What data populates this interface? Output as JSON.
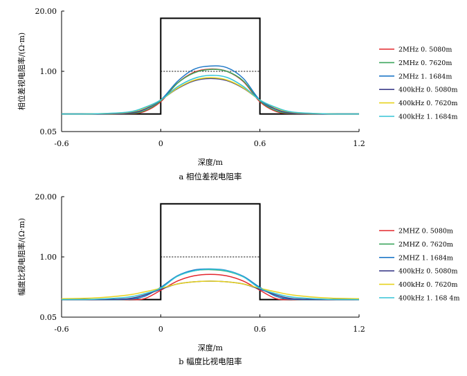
{
  "chart_data": [
    {
      "type": "line",
      "title": "",
      "caption": "a 相位差视电阻率",
      "xlabel": "深度/m",
      "ylabel": "相位差视电阻率/(Ω·m)",
      "x_scale": "linear",
      "y_scale": "log",
      "xlim": [
        -0.6,
        1.2
      ],
      "ylim": [
        0.05,
        20.0
      ],
      "xticks": [
        -0.6,
        0,
        0.6,
        1.2
      ],
      "xtick_labels": [
        "-0.6",
        "0",
        "0.6",
        "1.2"
      ],
      "yticks": [
        0.05,
        1.0,
        20.0
      ],
      "ytick_labels": [
        "0.05",
        "1.00",
        "20.00"
      ],
      "legend_position": "right",
      "true_model": {
        "name": "true resistivity",
        "x": [
          -0.6,
          0,
          0,
          0.6,
          0.6,
          1.2
        ],
        "y": [
          0.12,
          0.12,
          14.0,
          14.0,
          0.12,
          0.12
        ]
      },
      "reference_line": {
        "name": "reference 1.00 Ω·m",
        "x": [
          0,
          0.6
        ],
        "y": [
          1.0,
          1.0
        ]
      },
      "series": [
        {
          "name": "2MHz 0. 5080m",
          "color": "#e3262c",
          "x": [
            -0.6,
            -0.4,
            -0.2,
            -0.1,
            0,
            0.1,
            0.2,
            0.3,
            0.4,
            0.5,
            0.6,
            0.7,
            0.8,
            1.0,
            1.2
          ],
          "y": [
            0.12,
            0.12,
            0.122,
            0.135,
            0.22,
            0.55,
            0.95,
            1.12,
            1.0,
            0.6,
            0.22,
            0.135,
            0.122,
            0.12,
            0.12
          ]
        },
        {
          "name": "2MHz 0. 7620m",
          "color": "#3ba55c",
          "x": [
            -0.6,
            -0.4,
            -0.2,
            -0.1,
            0,
            0.1,
            0.2,
            0.3,
            0.4,
            0.5,
            0.6,
            0.7,
            0.8,
            1.0,
            1.2
          ],
          "y": [
            0.12,
            0.12,
            0.123,
            0.14,
            0.23,
            0.55,
            0.92,
            1.1,
            1.0,
            0.62,
            0.23,
            0.14,
            0.123,
            0.12,
            0.12
          ]
        },
        {
          "name": "2MHz 1. 1684m",
          "color": "#1f78c8",
          "x": [
            -0.6,
            -0.4,
            -0.2,
            -0.1,
            0,
            0.1,
            0.2,
            0.3,
            0.4,
            0.5,
            0.6,
            0.7,
            0.8,
            1.0,
            1.2
          ],
          "y": [
            0.12,
            0.12,
            0.125,
            0.15,
            0.24,
            0.6,
            1.1,
            1.3,
            1.2,
            0.7,
            0.24,
            0.15,
            0.125,
            0.12,
            0.12
          ]
        },
        {
          "name": "400kHz 0. 5080m",
          "color": "#3d3d8a",
          "x": [
            -0.6,
            -0.4,
            -0.2,
            -0.1,
            0,
            0.1,
            0.2,
            0.3,
            0.4,
            0.5,
            0.6,
            0.7,
            0.8,
            1.0,
            1.2
          ],
          "y": [
            0.12,
            0.12,
            0.125,
            0.15,
            0.24,
            0.42,
            0.62,
            0.7,
            0.63,
            0.43,
            0.24,
            0.15,
            0.125,
            0.12,
            0.12
          ]
        },
        {
          "name": "400kHz 0. 7620m",
          "color": "#e6d21c",
          "x": [
            -0.6,
            -0.4,
            -0.2,
            -0.1,
            0,
            0.1,
            0.2,
            0.3,
            0.4,
            0.5,
            0.6,
            0.7,
            0.8,
            1.0,
            1.2
          ],
          "y": [
            0.12,
            0.121,
            0.13,
            0.16,
            0.24,
            0.43,
            0.64,
            0.73,
            0.65,
            0.44,
            0.24,
            0.16,
            0.13,
            0.121,
            0.12
          ]
        },
        {
          "name": "400kHz 1. 1684m",
          "color": "#33c4d6",
          "x": [
            -0.6,
            -0.4,
            -0.2,
            -0.1,
            0,
            0.1,
            0.2,
            0.3,
            0.4,
            0.5,
            0.6,
            0.7,
            0.8,
            1.0,
            1.2
          ],
          "y": [
            0.12,
            0.121,
            0.132,
            0.165,
            0.24,
            0.46,
            0.7,
            0.82,
            0.74,
            0.47,
            0.24,
            0.165,
            0.132,
            0.121,
            0.12
          ]
        }
      ]
    },
    {
      "type": "line",
      "title": "",
      "caption": "b 幅度比视电阻率",
      "xlabel": "深度/m",
      "ylabel": "幅度比视电阻率/(Ω·m)",
      "x_scale": "linear",
      "y_scale": "log",
      "xlim": [
        -0.6,
        1.2
      ],
      "ylim": [
        0.05,
        20.0
      ],
      "xticks": [
        -0.6,
        0,
        0.6,
        1.2
      ],
      "xtick_labels": [
        "-0.6",
        "0",
        "0.6",
        "1.2"
      ],
      "yticks": [
        0.05,
        1.0,
        20.0
      ],
      "ytick_labels": [
        "0.05",
        "1.00",
        "20.00"
      ],
      "legend_position": "right",
      "true_model": {
        "name": "true resistivity",
        "x": [
          -0.6,
          0,
          0,
          0.6,
          0.6,
          1.2
        ],
        "y": [
          0.12,
          0.12,
          14.0,
          14.0,
          0.12,
          0.12
        ]
      },
      "reference_line": {
        "name": "reference 1.00 Ω·m",
        "x": [
          0,
          0.6
        ],
        "y": [
          1.0,
          1.0
        ]
      },
      "series": [
        {
          "name": "2MHZ 0. 5080m",
          "color": "#e3262c",
          "x": [
            -0.6,
            -0.4,
            -0.2,
            -0.1,
            0,
            0.1,
            0.2,
            0.3,
            0.4,
            0.5,
            0.6,
            0.7,
            0.8,
            1.0,
            1.2
          ],
          "y": [
            0.12,
            0.12,
            0.12,
            0.125,
            0.19,
            0.3,
            0.39,
            0.42,
            0.39,
            0.3,
            0.19,
            0.125,
            0.12,
            0.12,
            0.12
          ]
        },
        {
          "name": "2MHZ 0. 7620m",
          "color": "#3ba55c",
          "x": [
            -0.6,
            -0.4,
            -0.2,
            -0.1,
            0,
            0.1,
            0.2,
            0.3,
            0.4,
            0.5,
            0.6,
            0.7,
            0.8,
            1.0,
            1.2
          ],
          "y": [
            0.12,
            0.12,
            0.122,
            0.14,
            0.22,
            0.38,
            0.5,
            0.53,
            0.49,
            0.37,
            0.22,
            0.14,
            0.122,
            0.12,
            0.12
          ]
        },
        {
          "name": "2MHZ 1. 1684m",
          "color": "#1f78c8",
          "x": [
            -0.6,
            -0.4,
            -0.2,
            -0.1,
            0,
            0.1,
            0.2,
            0.3,
            0.4,
            0.5,
            0.6,
            0.7,
            0.8,
            1.0,
            1.2
          ],
          "y": [
            0.12,
            0.12,
            0.122,
            0.14,
            0.22,
            0.39,
            0.52,
            0.55,
            0.51,
            0.38,
            0.22,
            0.14,
            0.122,
            0.12,
            0.12
          ]
        },
        {
          "name": "400kHz 0. 5080m",
          "color": "#3d3d8a",
          "x": [
            -0.6,
            -0.4,
            -0.2,
            -0.1,
            0,
            0.1,
            0.2,
            0.3,
            0.4,
            0.5,
            0.6,
            0.7,
            0.8,
            1.0,
            1.2
          ],
          "y": [
            0.12,
            0.12,
            0.125,
            0.15,
            0.2,
            0.26,
            0.29,
            0.3,
            0.29,
            0.26,
            0.2,
            0.15,
            0.125,
            0.12,
            0.12
          ]
        },
        {
          "name": "400kHz 0. 7620m",
          "color": "#e6d21c",
          "x": [
            -0.6,
            -0.4,
            -0.2,
            -0.1,
            0,
            0.1,
            0.2,
            0.3,
            0.4,
            0.5,
            0.6,
            0.7,
            0.8,
            1.0,
            1.2
          ],
          "y": [
            0.125,
            0.13,
            0.15,
            0.175,
            0.21,
            0.26,
            0.29,
            0.3,
            0.29,
            0.26,
            0.21,
            0.175,
            0.15,
            0.13,
            0.125
          ]
        },
        {
          "name": "400kHz 1. 168 4m",
          "color": "#33c4d6",
          "x": [
            -0.6,
            -0.4,
            -0.2,
            -0.1,
            0,
            0.1,
            0.2,
            0.3,
            0.4,
            0.5,
            0.6,
            0.7,
            0.8,
            1.0,
            1.2
          ],
          "y": [
            0.12,
            0.122,
            0.135,
            0.16,
            0.21,
            0.38,
            0.5,
            0.54,
            0.5,
            0.37,
            0.21,
            0.16,
            0.135,
            0.122,
            0.12
          ]
        }
      ]
    }
  ]
}
